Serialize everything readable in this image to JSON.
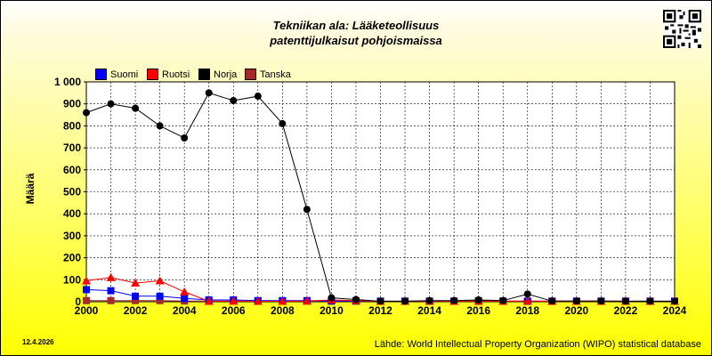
{
  "title_line1": "Tekniikan ala: Lääketeollisuus",
  "title_line2": "patenttijulkaisut pohjoismaissa",
  "date": "12.4.2026",
  "source": "Lähde: World Intellectual Property Organization (WIPO) statistical database",
  "chart_data": {
    "type": "line",
    "ylabel": "Määrä",
    "xlabel": "",
    "xlim": [
      2000,
      2024
    ],
    "ylim": [
      0,
      1000
    ],
    "x_ticks": [
      "2000",
      "2002",
      "2004",
      "2006",
      "2008",
      "2010",
      "2012",
      "2014",
      "2016",
      "2018",
      "2020",
      "2022",
      "2024"
    ],
    "y_ticks": [
      "0",
      "100",
      "200",
      "300",
      "400",
      "500",
      "600",
      "700",
      "800",
      "900",
      "1 000"
    ],
    "grid": true,
    "legend_position": "top-left",
    "x": [
      2000,
      2001,
      2002,
      2003,
      2004,
      2005,
      2006,
      2007,
      2008,
      2009,
      2010,
      2011,
      2012,
      2013,
      2014,
      2015,
      2016,
      2017,
      2018,
      2019,
      2020,
      2021,
      2022,
      2023,
      2024
    ],
    "series": [
      {
        "name": "Norja",
        "color": "#000000",
        "marker": "circle",
        "values": [
          860,
          900,
          880,
          800,
          745,
          950,
          915,
          935,
          810,
          420,
          18,
          10,
          2,
          2,
          5,
          5,
          8,
          5,
          35,
          3,
          3,
          3,
          2,
          2,
          2
        ]
      },
      {
        "name": "Ruotsi",
        "color": "#ff0000",
        "marker": "triangle",
        "values": [
          95,
          110,
          85,
          95,
          45,
          2,
          3,
          2,
          2,
          3,
          8,
          5,
          2,
          2,
          3,
          2,
          3,
          2,
          3,
          2,
          2,
          2,
          2,
          2,
          2
        ]
      },
      {
        "name": "Suomi",
        "color": "#0000ff",
        "marker": "square",
        "values": [
          55,
          50,
          25,
          25,
          15,
          8,
          8,
          5,
          5,
          5,
          3,
          3,
          2,
          2,
          2,
          2,
          2,
          2,
          2,
          2,
          2,
          2,
          2,
          2,
          2
        ]
      },
      {
        "name": "Tanska",
        "color": "#a52a2a",
        "marker": "square",
        "values": [
          5,
          5,
          5,
          5,
          3,
          3,
          3,
          3,
          3,
          3,
          3,
          3,
          3,
          3,
          3,
          3,
          5,
          3,
          3,
          3,
          3,
          3,
          3,
          3,
          3
        ]
      }
    ],
    "legend": [
      {
        "name": "Suomi",
        "color": "#0000ff"
      },
      {
        "name": "Ruotsi",
        "color": "#ff0000"
      },
      {
        "name": "Norja",
        "color": "#000000"
      },
      {
        "name": "Tanska",
        "color": "#a52a2a"
      }
    ]
  }
}
